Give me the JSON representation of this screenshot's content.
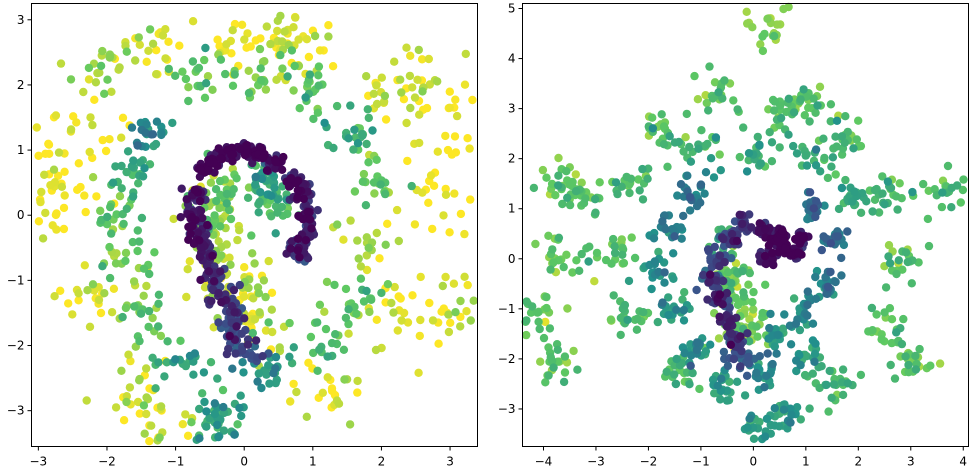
{
  "chart_data": [
    {
      "type": "scatter",
      "title": "",
      "xlabel": "",
      "ylabel": "",
      "xlim": [
        -3.1,
        3.4
      ],
      "ylim": [
        -3.55,
        3.25
      ],
      "xticks": [
        -3,
        -2,
        -1,
        0,
        1,
        2,
        3
      ],
      "yticks": [
        -3,
        -2,
        -1,
        0,
        1,
        2,
        3
      ],
      "xtick_labels": [
        "−3",
        "−2",
        "−1",
        "0",
        "1",
        "2",
        "3"
      ],
      "ytick_labels": [
        "−3",
        "−2",
        "−1",
        "0",
        "1",
        "2",
        "3"
      ],
      "grid": false,
      "legend": "none",
      "colormap": [
        "#440154",
        "#3b528b",
        "#21918c",
        "#5ec962",
        "#fde725"
      ],
      "shape": "two interleaved crescent arms of dark (purple) points spiralling from the center, surrounded by a noisy ring of teal-to-yellow points",
      "points": [
        [
          -0.6,
          0.7,
          0.0
        ],
        [
          -0.4,
          0.85,
          0.02
        ],
        [
          -0.2,
          0.95,
          0.03
        ],
        [
          0.0,
          1.0,
          0.05
        ],
        [
          0.2,
          0.95,
          0.04
        ],
        [
          0.45,
          0.8,
          0.06
        ],
        [
          0.7,
          0.55,
          0.05
        ],
        [
          0.85,
          0.3,
          0.07
        ],
        [
          0.95,
          0.0,
          0.08
        ],
        [
          0.9,
          -0.3,
          0.1
        ],
        [
          0.8,
          -0.55,
          0.12
        ],
        [
          -0.7,
          0.3,
          0.06
        ],
        [
          -0.75,
          0.0,
          0.08
        ],
        [
          -0.7,
          -0.3,
          0.1
        ],
        [
          -0.55,
          -0.6,
          0.12
        ],
        [
          -0.45,
          -0.9,
          0.14
        ],
        [
          -0.35,
          -1.2,
          0.16
        ],
        [
          -0.2,
          -1.5,
          0.18
        ],
        [
          -0.1,
          -1.8,
          0.22
        ],
        [
          0.0,
          -2.1,
          0.28
        ],
        [
          0.2,
          0.55,
          0.55
        ],
        [
          0.35,
          0.35,
          0.6
        ],
        [
          0.55,
          0.1,
          0.7
        ],
        [
          -0.3,
          0.4,
          0.75
        ],
        [
          -0.45,
          0.1,
          0.8
        ],
        [
          -0.4,
          -0.3,
          0.85
        ],
        [
          -0.3,
          -0.7,
          0.9
        ],
        [
          -0.2,
          -1.0,
          0.92
        ],
        [
          0.05,
          -1.3,
          0.95
        ],
        [
          0.15,
          -1.6,
          0.9
        ],
        [
          -1.4,
          1.2,
          0.5
        ],
        [
          -1.6,
          0.6,
          0.6
        ],
        [
          -1.8,
          0.0,
          0.75
        ],
        [
          -1.7,
          -0.8,
          0.8
        ],
        [
          -1.4,
          -1.5,
          0.75
        ],
        [
          -0.9,
          -2.2,
          0.6
        ],
        [
          0.3,
          -2.4,
          0.55
        ],
        [
          1.1,
          -2.0,
          0.7
        ],
        [
          1.6,
          -1.3,
          0.8
        ],
        [
          1.9,
          -0.4,
          0.85
        ],
        [
          1.9,
          0.5,
          0.75
        ],
        [
          1.6,
          1.3,
          0.6
        ],
        [
          1.0,
          1.9,
          0.7
        ],
        [
          0.2,
          2.2,
          0.8
        ],
        [
          -0.7,
          2.1,
          0.75
        ],
        [
          -2.4,
          1.4,
          0.98
        ],
        [
          -2.7,
          0.2,
          1.0
        ],
        [
          -2.3,
          -1.3,
          0.95
        ],
        [
          -1.6,
          -2.5,
          0.92
        ],
        [
          -0.3,
          -3.0,
          0.6
        ],
        [
          1.2,
          -2.7,
          0.95
        ],
        [
          2.4,
          -1.6,
          0.97
        ],
        [
          2.8,
          0.4,
          1.0
        ],
        [
          2.2,
          1.8,
          0.95
        ],
        [
          0.9,
          2.6,
          0.98
        ],
        [
          -0.2,
          2.8,
          0.97
        ],
        [
          -1.4,
          2.5,
          0.96
        ],
        [
          -2.9,
          0.8,
          0.99
        ],
        [
          3.2,
          1.5,
          1.0
        ],
        [
          3.1,
          -1.4,
          0.95
        ],
        [
          -1.3,
          -3.2,
          0.97
        ],
        [
          -0.35,
          -3.15,
          0.55
        ],
        [
          0.6,
          2.7,
          0.9
        ],
        [
          -2.1,
          2.2,
          0.85
        ],
        [
          2.6,
          2.1,
          0.93
        ]
      ]
    },
    {
      "type": "scatter",
      "title": "",
      "xlabel": "",
      "ylabel": "",
      "xlim": [
        -4.4,
        4.1
      ],
      "ylim": [
        -3.75,
        5.1
      ],
      "xticks": [
        -4,
        -3,
        -2,
        -1,
        0,
        1,
        2,
        3,
        4
      ],
      "yticks": [
        -3,
        -2,
        -1,
        0,
        1,
        2,
        3,
        4,
        5
      ],
      "xtick_labels": [
        "−4",
        "−3",
        "−2",
        "−1",
        "0",
        "1",
        "2",
        "3",
        "4"
      ],
      "ytick_labels": [
        "−3",
        "−2",
        "−1",
        "0",
        "1",
        "2",
        "3",
        "4",
        "5"
      ],
      "grid": false,
      "legend": "none",
      "colormap": [
        "#440154",
        "#3b528b",
        "#21918c",
        "#5ec962",
        "#fde725"
      ],
      "shape": "dense blob centered near (0.5, 0.2) with a dark purple core, a curved arm extending down-left to (-0.3, -2.2), and a light-green ring of outliers",
      "points": [
        [
          0.6,
          0.2,
          0.0
        ],
        [
          0.4,
          0.35,
          0.02
        ],
        [
          0.8,
          0.1,
          0.03
        ],
        [
          0.5,
          0.5,
          0.04
        ],
        [
          0.2,
          0.6,
          0.06
        ],
        [
          0.9,
          0.4,
          0.05
        ],
        [
          0.3,
          0.0,
          0.07
        ],
        [
          -0.2,
          0.7,
          0.15
        ],
        [
          -0.5,
          0.4,
          0.2
        ],
        [
          -0.7,
          0.0,
          0.22
        ],
        [
          -0.75,
          -0.4,
          0.18
        ],
        [
          -0.65,
          -0.8,
          0.16
        ],
        [
          -0.5,
          -1.2,
          0.14
        ],
        [
          -0.35,
          -1.6,
          0.18
        ],
        [
          -0.2,
          -2.0,
          0.3
        ],
        [
          -0.55,
          0.2,
          0.72
        ],
        [
          -0.45,
          -0.3,
          0.75
        ],
        [
          -0.3,
          -0.7,
          0.78
        ],
        [
          -0.15,
          -1.1,
          0.8
        ],
        [
          0.0,
          -1.5,
          0.78
        ],
        [
          1.2,
          1.0,
          0.35
        ],
        [
          1.5,
          0.3,
          0.38
        ],
        [
          1.4,
          -0.5,
          0.42
        ],
        [
          1.0,
          -1.0,
          0.45
        ],
        [
          0.5,
          -1.5,
          0.48
        ],
        [
          -1.2,
          1.3,
          0.4
        ],
        [
          -1.6,
          0.6,
          0.45
        ],
        [
          -1.8,
          -0.2,
          0.5
        ],
        [
          -1.5,
          -1.0,
          0.55
        ],
        [
          -1.0,
          -1.8,
          0.5
        ],
        [
          0.2,
          -2.3,
          0.45
        ],
        [
          1.0,
          -2.0,
          0.55
        ],
        [
          2.0,
          1.2,
          0.6
        ],
        [
          1.2,
          2.1,
          0.62
        ],
        [
          0.1,
          2.2,
          0.6
        ],
        [
          -1.0,
          2.1,
          0.62
        ],
        [
          -2.3,
          1.5,
          0.7
        ],
        [
          -2.6,
          0.2,
          0.72
        ],
        [
          -2.4,
          -1.2,
          0.7
        ],
        [
          -1.5,
          -2.3,
          0.66
        ],
        [
          -0.5,
          -2.6,
          0.55
        ],
        [
          0.6,
          -3.0,
          0.55
        ],
        [
          1.6,
          -2.6,
          0.66
        ],
        [
          2.5,
          -1.4,
          0.7
        ],
        [
          2.8,
          0.0,
          0.72
        ],
        [
          2.6,
          1.3,
          0.7
        ],
        [
          1.8,
          2.4,
          0.7
        ],
        [
          0.6,
          2.9,
          0.7
        ],
        [
          -0.7,
          3.2,
          0.72
        ],
        [
          -1.8,
          2.6,
          0.72
        ],
        [
          -3.7,
          1.5,
          0.75
        ],
        [
          -4.1,
          -1.1,
          0.75
        ],
        [
          -3.7,
          -2.0,
          0.74
        ],
        [
          3.6,
          1.3,
          0.72
        ],
        [
          3.0,
          -2.1,
          0.74
        ],
        [
          0.35,
          4.7,
          0.8
        ],
        [
          -3.3,
          1.3,
          0.72
        ],
        [
          -3.75,
          0.05,
          0.73
        ],
        [
          1.05,
          3.2,
          0.72
        ],
        [
          0.05,
          -3.35,
          0.55
        ]
      ]
    }
  ]
}
